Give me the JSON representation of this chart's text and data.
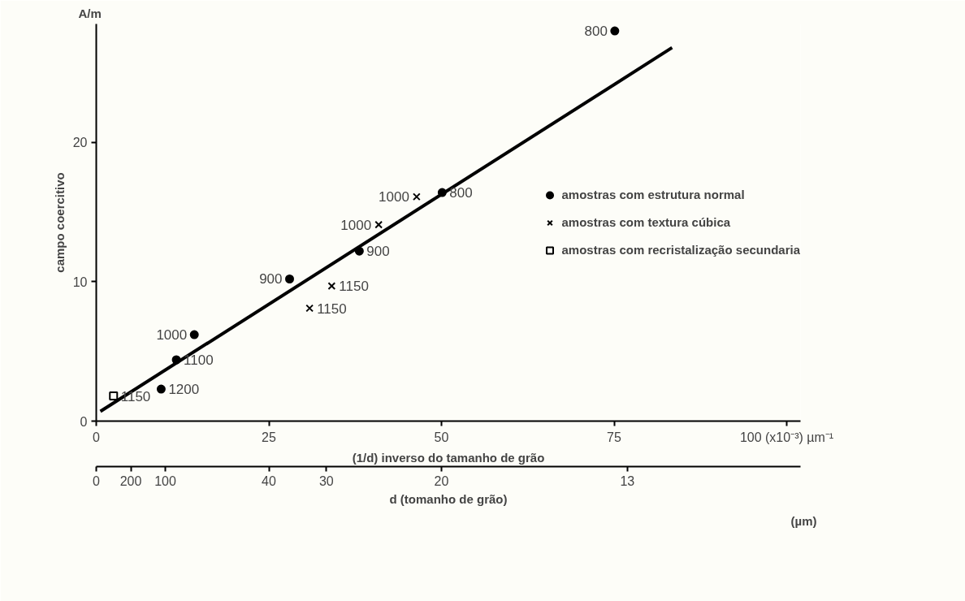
{
  "chart_data": {
    "type": "scatter",
    "xlabel": "(1/d) inverso do tamanho de grão",
    "ylabel": "campo coercitivo",
    "x2label": "d (tomanho de grão)",
    "xlim": [
      0,
      102
    ],
    "ylim": [
      0,
      28.5
    ],
    "xticks": [
      0,
      25,
      50,
      75,
      {
        "value": 100,
        "label": "100 (x10⁻³) µm⁻¹"
      }
    ],
    "yticks": [
      0,
      10,
      20
    ],
    "grid": false,
    "legend": "right",
    "series": [
      {
        "name": "amostras com estrutura normal",
        "color": "#000000",
        "marker": "circle",
        "x": [
          9.4,
          11.6,
          14.2,
          28.0,
          38.1,
          50.1,
          75.1
        ],
        "values": [
          2.3,
          4.4,
          6.2,
          10.2,
          12.2,
          16.4,
          28.0
        ]
      },
      {
        "name": "amostras com textura cúbica",
        "color": "#000000",
        "marker": "cross",
        "x": [
          30.9,
          34.1,
          40.9,
          46.4
        ],
        "values": [
          8.1,
          9.7,
          14.1,
          16.1
        ]
      },
      {
        "name": "amostras com recristalização secundaria",
        "color": "#000000",
        "marker": "square",
        "x": [
          2.5
        ],
        "values": [
          1.8
        ]
      },
      {
        "type": "line",
        "color": "#000000",
        "marker": "none",
        "x": [
          0.6,
          83.4
        ],
        "values": [
          0.7,
          26.8
        ]
      }
    ],
    "annotations": [
      "A/m",
      "(µm)",
      "0",
      "200",
      "100",
      "40",
      "30",
      "20",
      "13",
      {
        "text": "1200",
        "x": 9.4,
        "y": 2.3
      },
      {
        "text": "1100",
        "x": 11.6,
        "y": 4.4
      },
      {
        "text": "1000",
        "x": 14.2,
        "y": 6.2
      },
      {
        "text": "900",
        "x": 28.0,
        "y": 10.2
      },
      {
        "text": "900",
        "x": 38.1,
        "y": 12.2
      },
      {
        "text": "800",
        "x": 50.1,
        "y": 16.4
      },
      {
        "text": "800",
        "x": 75.1,
        "y": 28.0
      },
      {
        "text": "1150",
        "x": 30.9,
        "y": 8.1
      },
      {
        "text": "1150",
        "x": 34.1,
        "y": 9.7
      },
      {
        "text": "1000",
        "x": 40.9,
        "y": 14.1
      },
      {
        "text": "1000",
        "x": 46.4,
        "y": 16.1
      },
      {
        "text": "1150",
        "x": 2.5,
        "y": 1.8
      }
    ]
  }
}
